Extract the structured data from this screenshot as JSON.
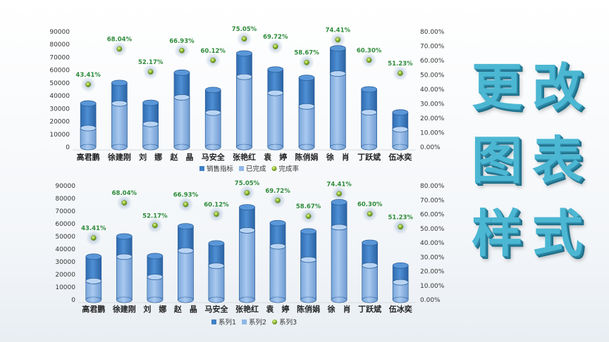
{
  "side_title": [
    "更",
    "改",
    "图",
    "表",
    "样",
    "式"
  ],
  "chart_data": [
    {
      "type": "bar",
      "categories": [
        "高君鹏",
        "徐建刚",
        "刘　娜",
        "赵　晶",
        "马安全",
        "张艳红",
        "袁　婷",
        "陈俏娟",
        "徐　肖",
        "丁跃斌",
        "伍冰奕"
      ],
      "series": [
        {
          "name": "销售指标",
          "values": [
            34000,
            50000,
            34500,
            58000,
            44500,
            73000,
            60500,
            54000,
            77000,
            45000,
            27000
          ]
        },
        {
          "name": "已完成",
          "values": [
            14800,
            34000,
            18000,
            38800,
            26800,
            54800,
            42200,
            31700,
            57300,
            27100,
            13800
          ]
        },
        {
          "name": "完成率",
          "values": [
            0.4341,
            0.6804,
            0.5217,
            0.6693,
            0.6012,
            0.7505,
            0.6972,
            0.5867,
            0.7441,
            0.603,
            0.5123
          ],
          "labels": [
            "43.41%",
            "68.04%",
            "52.17%",
            "66.93%",
            "60.12%",
            "75.05%",
            "69.72%",
            "58.67%",
            "74.41%",
            "60.30%",
            "51.23%"
          ]
        }
      ],
      "ylim": [
        0,
        90000
      ],
      "yticks": [
        "0",
        "10000",
        "20000",
        "30000",
        "40000",
        "50000",
        "60000",
        "70000",
        "80000",
        "90000"
      ],
      "y2lim": [
        0,
        0.8
      ],
      "y2ticks": [
        "0.00%",
        "10.00%",
        "20.00%",
        "30.00%",
        "40.00%",
        "50.00%",
        "60.00%",
        "70.00%",
        "80.00%"
      ],
      "legend": "bottom",
      "colors": {
        "target": "#3f7fc4",
        "done": "#8fb7e6",
        "rate": "#8fbf2f"
      }
    },
    {
      "type": "bar",
      "categories": [
        "高君鹏",
        "徐建刚",
        "刘　娜",
        "赵　晶",
        "马安全",
        "张艳红",
        "袁　婷",
        "陈俏娟",
        "徐　肖",
        "丁跃斌",
        "伍冰奕"
      ],
      "series": [
        {
          "name": "系列1",
          "values": [
            34000,
            50000,
            34500,
            58000,
            44500,
            73000,
            60500,
            54000,
            77000,
            45000,
            27000
          ]
        },
        {
          "name": "系列2",
          "values": [
            14800,
            34000,
            18000,
            38800,
            26800,
            54800,
            42200,
            31700,
            57300,
            27100,
            13800
          ]
        },
        {
          "name": "系列3",
          "values": [
            0.4341,
            0.6804,
            0.5217,
            0.6693,
            0.6012,
            0.7505,
            0.6972,
            0.5867,
            0.7441,
            0.603,
            0.5123
          ],
          "labels": [
            "43.41%",
            "68.04%",
            "52.17%",
            "66.93%",
            "60.12%",
            "75.05%",
            "69.72%",
            "58.67%",
            "74.41%",
            "60.30%",
            "51.23%"
          ]
        }
      ],
      "ylim": [
        0,
        90000
      ],
      "yticks": [
        "0",
        "10000",
        "20000",
        "30000",
        "40000",
        "50000",
        "60000",
        "70000",
        "80000",
        "90000"
      ],
      "y2lim": [
        0,
        0.8
      ],
      "y2ticks": [
        "0.00%",
        "10.00%",
        "20.00%",
        "30.00%",
        "40.00%",
        "50.00%",
        "60.00%",
        "70.00%",
        "80.00%"
      ],
      "legend": "bottom",
      "colors": {
        "target": "#3f7fc4",
        "done": "#8fb7e6",
        "rate": "#8fbf2f"
      }
    }
  ]
}
